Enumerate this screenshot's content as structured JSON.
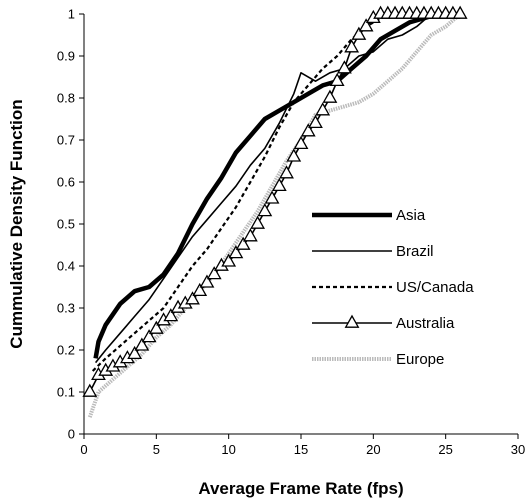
{
  "chart_data": {
    "type": "line",
    "title": "",
    "xlabel": "Average Frame Rate (fps)",
    "ylabel": "Cummulative Density Function",
    "xlim": [
      0,
      30
    ],
    "ylim": [
      0,
      1
    ],
    "xticks": [
      "0",
      "5",
      "10",
      "15",
      "20",
      "25",
      "30"
    ],
    "yticks": [
      "0",
      "0.1",
      "0.2",
      "0.3",
      "0.4",
      "0.5",
      "0.6",
      "0.7",
      "0.8",
      "0.9",
      "1"
    ],
    "grid": false,
    "legend_position": "right",
    "series": [
      {
        "name": "Asia",
        "style": "thick-solid",
        "color": "#000000",
        "points": [
          [
            0.8,
            0.18
          ],
          [
            1.0,
            0.22
          ],
          [
            1.5,
            0.26
          ],
          [
            2.5,
            0.31
          ],
          [
            3.5,
            0.34
          ],
          [
            4.5,
            0.35
          ],
          [
            5.5,
            0.38
          ],
          [
            6.5,
            0.43
          ],
          [
            7.5,
            0.5
          ],
          [
            8.5,
            0.56
          ],
          [
            9.5,
            0.61
          ],
          [
            10.5,
            0.67
          ],
          [
            11.5,
            0.71
          ],
          [
            12.5,
            0.75
          ],
          [
            13.5,
            0.77
          ],
          [
            14.5,
            0.79
          ],
          [
            15.5,
            0.81
          ],
          [
            16.5,
            0.83
          ],
          [
            17.5,
            0.84
          ],
          [
            18.5,
            0.87
          ],
          [
            19.5,
            0.9
          ],
          [
            20.5,
            0.94
          ],
          [
            21.5,
            0.96
          ],
          [
            22.5,
            0.98
          ],
          [
            23.5,
            0.99
          ],
          [
            24.5,
            1.0
          ],
          [
            25.0,
            1.0
          ]
        ]
      },
      {
        "name": "Brazil",
        "style": "thin-solid",
        "color": "#000000",
        "points": [
          [
            0.8,
            0.17
          ],
          [
            1.5,
            0.2
          ],
          [
            2.5,
            0.24
          ],
          [
            3.5,
            0.28
          ],
          [
            4.5,
            0.32
          ],
          [
            5.5,
            0.37
          ],
          [
            6.5,
            0.42
          ],
          [
            7.5,
            0.47
          ],
          [
            8.5,
            0.51
          ],
          [
            9.5,
            0.55
          ],
          [
            10.5,
            0.59
          ],
          [
            11.5,
            0.64
          ],
          [
            12.5,
            0.68
          ],
          [
            13.5,
            0.74
          ],
          [
            14.5,
            0.81
          ],
          [
            15.0,
            0.86
          ],
          [
            16.0,
            0.84
          ],
          [
            17.0,
            0.86
          ],
          [
            18.0,
            0.87
          ],
          [
            19.0,
            0.9
          ],
          [
            20.0,
            0.91
          ],
          [
            21.0,
            0.94
          ],
          [
            22.0,
            0.95
          ],
          [
            23.0,
            0.97
          ],
          [
            24.0,
            1.0
          ],
          [
            25.5,
            1.0
          ]
        ]
      },
      {
        "name": "US/Canada",
        "style": "dashed",
        "color": "#000000",
        "points": [
          [
            0.6,
            0.15
          ],
          [
            1.5,
            0.18
          ],
          [
            2.5,
            0.21
          ],
          [
            3.5,
            0.24
          ],
          [
            4.5,
            0.27
          ],
          [
            5.5,
            0.3
          ],
          [
            6.5,
            0.35
          ],
          [
            7.5,
            0.4
          ],
          [
            8.5,
            0.44
          ],
          [
            9.5,
            0.49
          ],
          [
            10.5,
            0.54
          ],
          [
            11.5,
            0.6
          ],
          [
            12.5,
            0.66
          ],
          [
            13.5,
            0.73
          ],
          [
            14.5,
            0.79
          ],
          [
            15.5,
            0.83
          ],
          [
            16.5,
            0.87
          ],
          [
            17.5,
            0.9
          ],
          [
            18.5,
            0.94
          ],
          [
            19.5,
            0.97
          ],
          [
            20.5,
            0.99
          ],
          [
            21.5,
            1.0
          ],
          [
            22.5,
            1.0
          ]
        ]
      },
      {
        "name": "Australia",
        "style": "solid-triangle",
        "color": "#000000",
        "points": [
          [
            0.4,
            0.1
          ],
          [
            1.0,
            0.14
          ],
          [
            1.5,
            0.15
          ],
          [
            2.0,
            0.16
          ],
          [
            2.5,
            0.17
          ],
          [
            3.0,
            0.18
          ],
          [
            3.5,
            0.19
          ],
          [
            4.0,
            0.21
          ],
          [
            4.5,
            0.23
          ],
          [
            5.0,
            0.25
          ],
          [
            5.5,
            0.27
          ],
          [
            6.0,
            0.28
          ],
          [
            6.5,
            0.3
          ],
          [
            7.0,
            0.31
          ],
          [
            7.5,
            0.32
          ],
          [
            8.0,
            0.34
          ],
          [
            8.5,
            0.36
          ],
          [
            9.0,
            0.38
          ],
          [
            9.5,
            0.4
          ],
          [
            10.0,
            0.41
          ],
          [
            10.5,
            0.43
          ],
          [
            11.0,
            0.45
          ],
          [
            11.5,
            0.47
          ],
          [
            12.0,
            0.5
          ],
          [
            12.5,
            0.53
          ],
          [
            13.0,
            0.56
          ],
          [
            13.5,
            0.59
          ],
          [
            14.0,
            0.62
          ],
          [
            14.5,
            0.66
          ],
          [
            15.0,
            0.69
          ],
          [
            15.5,
            0.72
          ],
          [
            16.0,
            0.74
          ],
          [
            16.5,
            0.77
          ],
          [
            17.0,
            0.8
          ],
          [
            17.5,
            0.84
          ],
          [
            18.0,
            0.87
          ],
          [
            18.5,
            0.92
          ],
          [
            19.0,
            0.95
          ],
          [
            19.5,
            0.97
          ],
          [
            20.0,
            0.99
          ],
          [
            20.5,
            1.0
          ],
          [
            21.0,
            1.0
          ],
          [
            21.5,
            1.0
          ],
          [
            22.0,
            1.0
          ],
          [
            22.5,
            1.0
          ],
          [
            23.0,
            1.0
          ],
          [
            23.5,
            1.0
          ],
          [
            24.0,
            1.0
          ],
          [
            24.5,
            1.0
          ],
          [
            25.0,
            1.0
          ],
          [
            25.5,
            1.0
          ],
          [
            26.0,
            1.0
          ]
        ]
      },
      {
        "name": "Europe",
        "style": "light-gray",
        "color": "#bbbbbb",
        "points": [
          [
            0.4,
            0.04
          ],
          [
            1.0,
            0.1
          ],
          [
            2.0,
            0.13
          ],
          [
            3.0,
            0.16
          ],
          [
            4.0,
            0.19
          ],
          [
            5.0,
            0.23
          ],
          [
            6.0,
            0.26
          ],
          [
            7.0,
            0.3
          ],
          [
            8.0,
            0.34
          ],
          [
            9.0,
            0.38
          ],
          [
            10.0,
            0.43
          ],
          [
            11.0,
            0.48
          ],
          [
            12.0,
            0.53
          ],
          [
            13.0,
            0.59
          ],
          [
            14.0,
            0.65
          ],
          [
            15.0,
            0.7
          ],
          [
            16.0,
            0.76
          ],
          [
            17.0,
            0.77
          ],
          [
            18.0,
            0.78
          ],
          [
            19.0,
            0.79
          ],
          [
            20.0,
            0.81
          ],
          [
            21.0,
            0.84
          ],
          [
            22.0,
            0.87
          ],
          [
            23.0,
            0.91
          ],
          [
            24.0,
            0.95
          ],
          [
            25.0,
            0.97
          ],
          [
            26.0,
            1.0
          ]
        ]
      }
    ]
  }
}
